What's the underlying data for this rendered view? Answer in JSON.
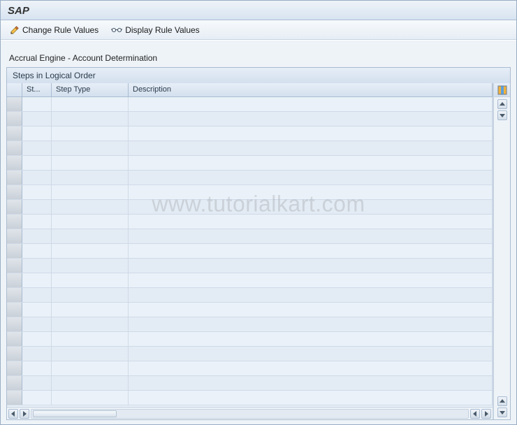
{
  "header": {
    "title": "SAP"
  },
  "toolbar": {
    "change_label": "Change Rule Values",
    "display_label": "Display Rule Values"
  },
  "section": {
    "subtitle": "Accrual Engine - Account Determination"
  },
  "panel": {
    "title": "Steps in Logical Order",
    "columns": {
      "st": "St...",
      "step_type": "Step Type",
      "description": "Description"
    },
    "row_count": 21
  },
  "watermark": "www.tutorialkart.com",
  "colors": {
    "titlebar_bg_top": "#eef3f8",
    "titlebar_bg_bottom": "#d7e4f1",
    "border": "#aabcd1",
    "row_even": "#e3ebf4",
    "row_odd": "#eaf1f8",
    "sel_col": "#c9d0d8"
  }
}
